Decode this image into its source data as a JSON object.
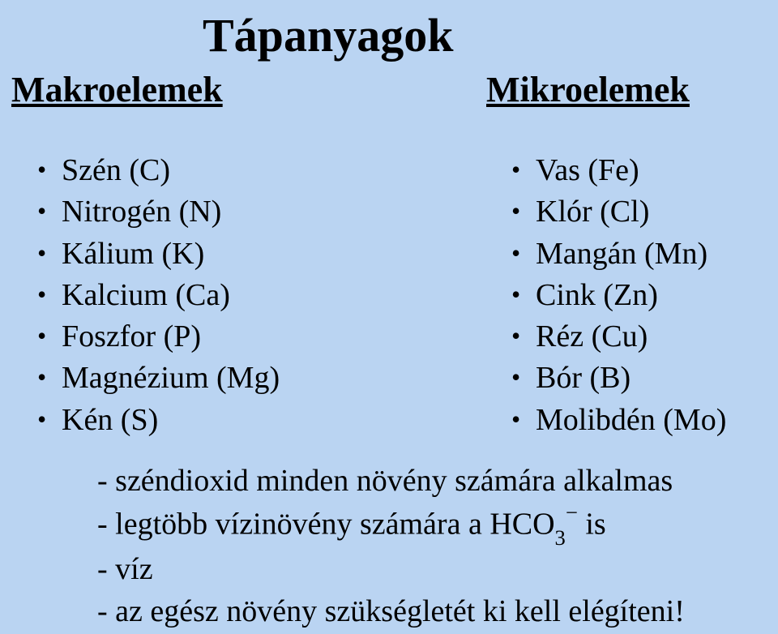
{
  "title": "Tápanyagok",
  "left": {
    "heading": "Makroelemek",
    "items": [
      "Szén (C)",
      "Nitrogén (N)",
      "Kálium (K)",
      "Kalcium (Ca)",
      "Foszfor (P)",
      "Magnézium (Mg)",
      "Kén (S)"
    ]
  },
  "right": {
    "heading": "Mikroelemek",
    "items": [
      "Vas (Fe)",
      "Klór (Cl)",
      "Mangán (Mn)",
      "Cink (Zn)",
      "Réz (Cu)",
      "Bór (B)",
      "Molibdén (Mo)"
    ]
  },
  "notes": {
    "line1": "- széndioxid minden növény számára alkalmas",
    "line2_pre": "- legtöbb vízinövény számára a HCO",
    "line2_sub": "3",
    "line2_sup": "−",
    "line2_post": " is",
    "line3": "- víz",
    "line4": "- az egész növény szükségletét ki kell elégíteni!"
  },
  "colors": {
    "background": "#bad4f2",
    "text": "#000000"
  },
  "fonts": {
    "title_size_pt": 44,
    "heading_size_pt": 33,
    "body_size_pt": 29
  }
}
